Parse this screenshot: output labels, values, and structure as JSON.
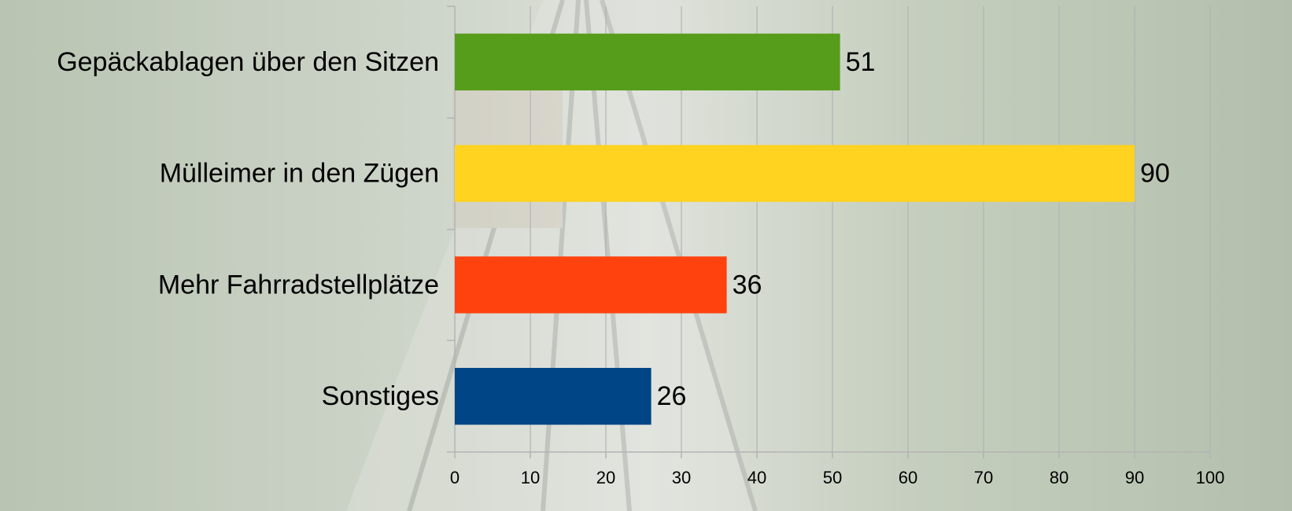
{
  "chart_data": {
    "type": "bar",
    "orientation": "horizontal",
    "categories": [
      "Gepäckablagen über den Sitzen",
      "Mülleimer in den Zügen",
      "Mehr Fahrradstellplätze",
      "Sonstiges"
    ],
    "values": [
      51,
      90,
      36,
      26
    ],
    "colors": [
      "#579d1c",
      "#ffd320",
      "#ff420e",
      "#004586"
    ],
    "xlim": [
      0,
      100
    ],
    "xticks": [
      0,
      10,
      20,
      30,
      40,
      50,
      60,
      70,
      80,
      90,
      100
    ],
    "grid": true
  }
}
